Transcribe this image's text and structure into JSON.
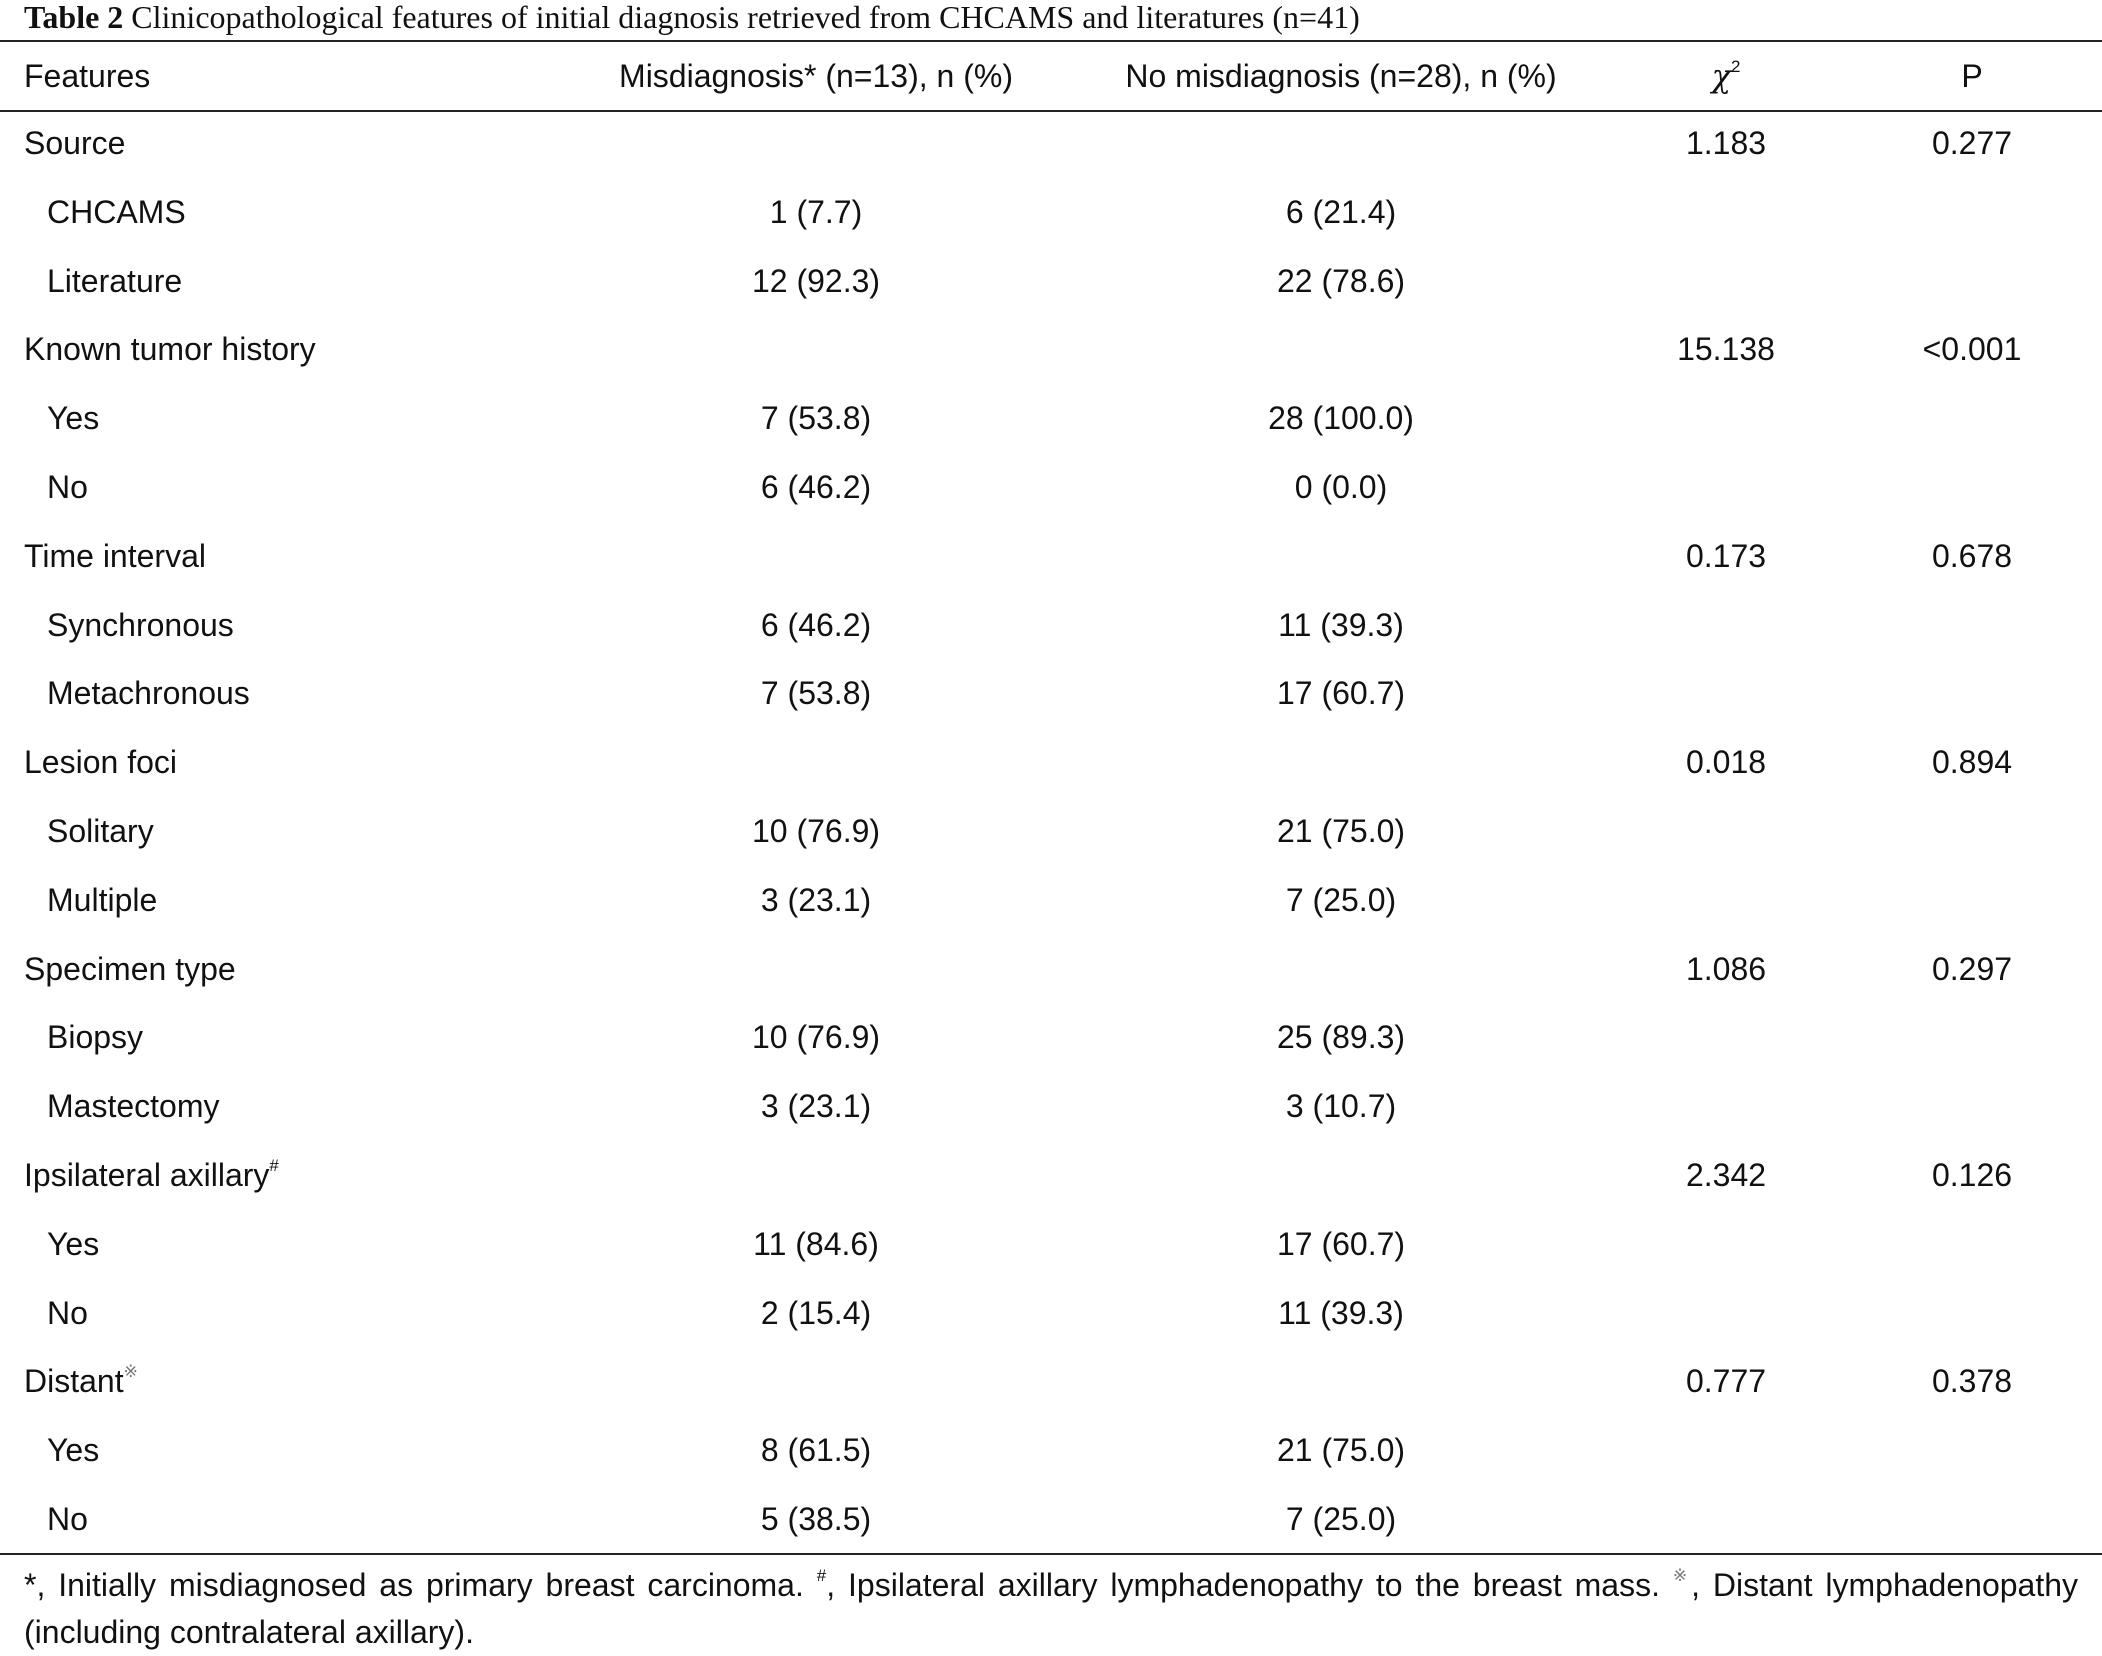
{
  "caption": {
    "label": "Table 2",
    "title": "Clinicopathological features of initial diagnosis retrieved from CHCAMS and literatures (n=41)"
  },
  "header": {
    "features": "Features",
    "misdiagnosis": "Misdiagnosis* (n=13), n (%)",
    "no_misdiagnosis": "No misdiagnosis (n=28), n (%)",
    "chi_symbol": "χ",
    "chi_exponent": "2",
    "p": "P"
  },
  "rows": [
    {
      "label": "Source",
      "mis": "",
      "nomis": "",
      "chi2": "1.183",
      "p": "0.277"
    },
    {
      "label": "CHCAMS",
      "mis": "1 (7.7)",
      "nomis": "6 (21.4)",
      "chi2": "",
      "p": ""
    },
    {
      "label": "Literature",
      "mis": "12 (92.3)",
      "nomis": "22 (78.6)",
      "chi2": "",
      "p": ""
    },
    {
      "label": "Known tumor history",
      "mis": "",
      "nomis": "",
      "chi2": "15.138",
      "p": "<0.001"
    },
    {
      "label": "Yes",
      "mis": "7 (53.8)",
      "nomis": "28 (100.0)",
      "chi2": "",
      "p": ""
    },
    {
      "label": "No",
      "mis": "6 (46.2)",
      "nomis": "0 (0.0)",
      "chi2": "",
      "p": ""
    },
    {
      "label": "Time interval",
      "mis": "",
      "nomis": "",
      "chi2": "0.173",
      "p": "0.678"
    },
    {
      "label": "Synchronous",
      "mis": "6 (46.2)",
      "nomis": "11 (39.3)",
      "chi2": "",
      "p": ""
    },
    {
      "label": "Metachronous",
      "mis": "7 (53.8)",
      "nomis": "17 (60.7)",
      "chi2": "",
      "p": ""
    },
    {
      "label": "Lesion foci",
      "mis": "",
      "nomis": "",
      "chi2": "0.018",
      "p": "0.894"
    },
    {
      "label": "Solitary",
      "mis": "10 (76.9)",
      "nomis": "21 (75.0)",
      "chi2": "",
      "p": ""
    },
    {
      "label": "Multiple",
      "mis": "3 (23.1)",
      "nomis": "7 (25.0)",
      "chi2": "",
      "p": ""
    },
    {
      "label": "Specimen type",
      "mis": "",
      "nomis": "",
      "chi2": "1.086",
      "p": "0.297"
    },
    {
      "label": "Biopsy",
      "mis": "10 (76.9)",
      "nomis": "25 (89.3)",
      "chi2": "",
      "p": ""
    },
    {
      "label": "Mastectomy",
      "mis": "3 (23.1)",
      "nomis": "3 (10.7)",
      "chi2": "",
      "p": ""
    },
    {
      "label": "Ipsilateral axillary",
      "sup": "#",
      "mis": "",
      "nomis": "",
      "chi2": "2.342",
      "p": "0.126"
    },
    {
      "label": "Yes",
      "mis": "11 (84.6)",
      "nomis": "17 (60.7)",
      "chi2": "",
      "p": ""
    },
    {
      "label": "No",
      "mis": "2 (15.4)",
      "nomis": "11 (39.3)",
      "chi2": "",
      "p": ""
    },
    {
      "label": "Distant",
      "sup": "※",
      "mis": "",
      "nomis": "",
      "chi2": "0.777",
      "p": "0.378"
    },
    {
      "label": "Yes",
      "mis": "8 (61.5)",
      "nomis": "21 (75.0)",
      "chi2": "",
      "p": ""
    },
    {
      "label": "No",
      "mis": "5 (38.5)",
      "nomis": "7 (25.0)",
      "chi2": "",
      "p": ""
    }
  ],
  "footnotes": [
    {
      "mark": "*",
      "text": ", Initially misdiagnosed as primary breast carcinoma. "
    },
    {
      "mark": "#",
      "text": ", Ipsilateral axillary lymphadenopathy to the breast mass. "
    },
    {
      "mark": "※",
      "text": ", Distant lymphadenopathy (including contralateral axillary)."
    }
  ]
}
